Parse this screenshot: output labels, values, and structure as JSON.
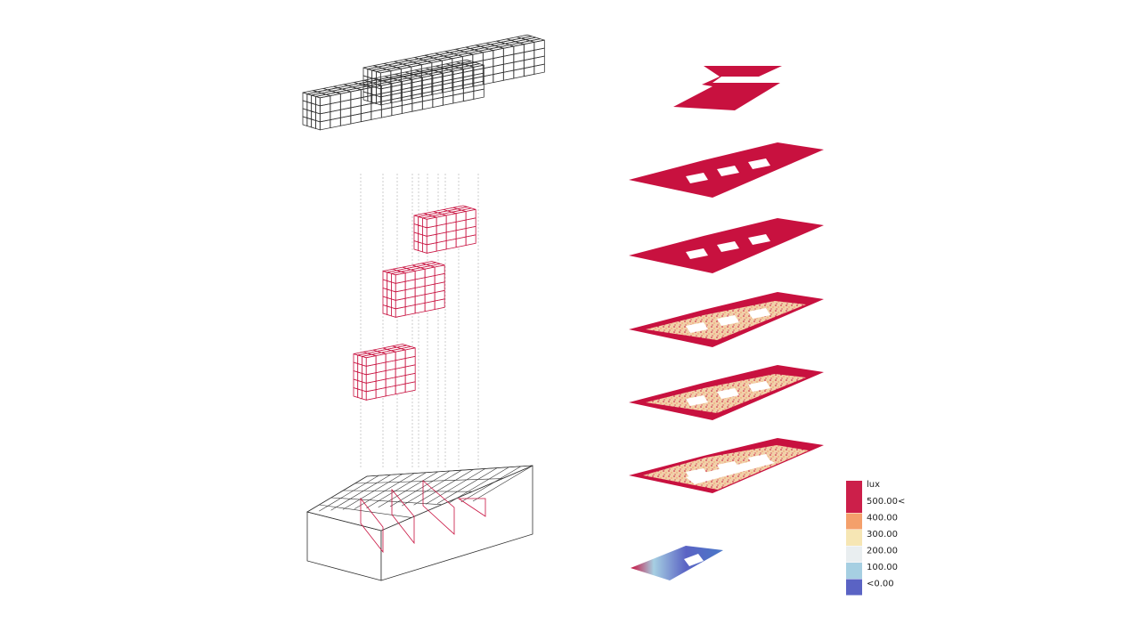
{
  "legend": {
    "unit": "lux",
    "entries": [
      {
        "label": "500.00<",
        "color": "#cc1f4a"
      },
      {
        "label": "400.00",
        "color": "#f4a06b"
      },
      {
        "label": "300.00",
        "color": "#f6e6b4"
      },
      {
        "label": "200.00",
        "color": "#e9eef0"
      },
      {
        "label": "100.00",
        "color": "#a6cfe2"
      },
      {
        "label": "<0.00",
        "color": "#5a63c4"
      }
    ],
    "top_swatch_color": "#cc1f4a"
  },
  "colors": {
    "high_lux": "#c8113f",
    "outline_dark": "#333333",
    "outline_red": "#c8113f",
    "warm_spot": "#f6d98a",
    "cool_spot": "#4a78c8"
  },
  "floor_plates": [
    {
      "index": 1,
      "level_kind": "roof",
      "light_pattern": "full"
    },
    {
      "index": 2,
      "level_kind": "upper",
      "light_pattern": "edge-spots"
    },
    {
      "index": 3,
      "level_kind": "upper",
      "light_pattern": "edge-spots"
    },
    {
      "index": 4,
      "level_kind": "middle",
      "light_pattern": "ring"
    },
    {
      "index": 5,
      "level_kind": "middle",
      "light_pattern": "ring"
    },
    {
      "index": 6,
      "level_kind": "middle",
      "light_pattern": "ring-courtyard"
    },
    {
      "index": 7,
      "level_kind": "ground",
      "light_pattern": "gradient-blue"
    }
  ]
}
